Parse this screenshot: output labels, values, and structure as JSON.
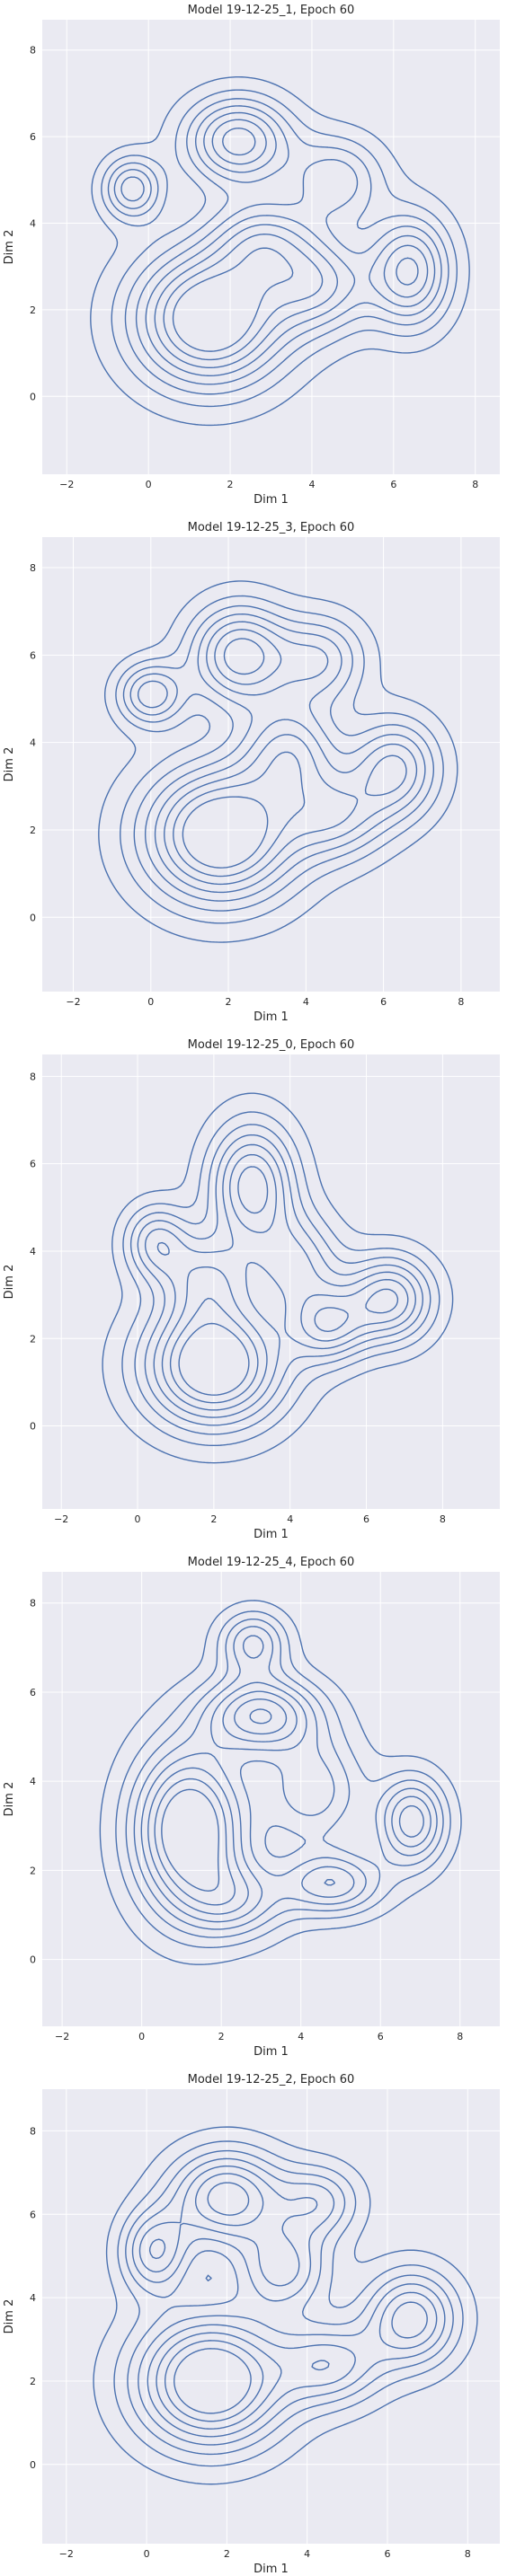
{
  "chart_data": [
    {
      "type": "kde-contour",
      "title": "Model 19-12-25_1, Epoch 60",
      "xlabel": "Dim 1",
      "ylabel": "Dim 2",
      "xlim": [
        -2.6,
        8.6
      ],
      "ylim": [
        -1.8,
        8.7
      ],
      "xticks": [
        -2,
        0,
        2,
        4,
        6,
        8
      ],
      "yticks": [
        0,
        2,
        4,
        6,
        8
      ],
      "grid": true,
      "color": "#4c72b0",
      "levels": [
        0.08,
        0.18,
        0.28,
        0.38,
        0.48,
        0.58,
        0.68,
        0.78
      ],
      "components": [
        {
          "x": 1.5,
          "y": 1.8,
          "sx": 1.3,
          "sy": 1.1,
          "w": 1.0
        },
        {
          "x": 2.2,
          "y": 5.9,
          "sx": 0.9,
          "sy": 0.7,
          "w": 0.75
        },
        {
          "x": -0.4,
          "y": 4.8,
          "sx": 0.5,
          "sy": 0.5,
          "w": 0.55
        },
        {
          "x": 6.4,
          "y": 2.9,
          "sx": 0.7,
          "sy": 0.9,
          "w": 0.7
        },
        {
          "x": 4.2,
          "y": 2.6,
          "sx": 0.9,
          "sy": 0.8,
          "w": 0.55
        },
        {
          "x": 4.6,
          "y": 5.0,
          "sx": 0.8,
          "sy": 0.7,
          "w": 0.45
        },
        {
          "x": 2.8,
          "y": 3.6,
          "sx": 0.9,
          "sy": 0.7,
          "w": 0.5
        }
      ]
    },
    {
      "type": "kde-contour",
      "title": "Model 19-12-25_3, Epoch 60",
      "xlabel": "Dim 1",
      "ylabel": "Dim 2",
      "xlim": [
        -2.8,
        9.0
      ],
      "ylim": [
        -1.7,
        8.7
      ],
      "xticks": [
        -2,
        0,
        2,
        4,
        6,
        8
      ],
      "yticks": [
        0,
        2,
        4,
        6,
        8
      ],
      "grid": true,
      "color": "#4c72b0",
      "levels": [
        0.08,
        0.18,
        0.28,
        0.38,
        0.48,
        0.58,
        0.68,
        0.78
      ],
      "components": [
        {
          "x": 1.8,
          "y": 1.9,
          "sx": 1.4,
          "sy": 1.1,
          "w": 1.0
        },
        {
          "x": 2.3,
          "y": 6.0,
          "sx": 0.9,
          "sy": 0.8,
          "w": 0.75
        },
        {
          "x": 0.0,
          "y": 5.1,
          "sx": 0.6,
          "sy": 0.5,
          "w": 0.55
        },
        {
          "x": 6.3,
          "y": 3.4,
          "sx": 0.8,
          "sy": 0.8,
          "w": 0.6
        },
        {
          "x": 3.6,
          "y": 3.8,
          "sx": 0.9,
          "sy": 0.8,
          "w": 0.55
        },
        {
          "x": 4.4,
          "y": 5.9,
          "sx": 0.8,
          "sy": 0.7,
          "w": 0.45
        },
        {
          "x": 4.8,
          "y": 2.3,
          "sx": 0.9,
          "sy": 0.7,
          "w": 0.45
        }
      ]
    },
    {
      "type": "kde-contour",
      "title": "Model 19-12-25_0, Epoch 60",
      "xlabel": "Dim 1",
      "ylabel": "Dim 2",
      "xlim": [
        -2.5,
        9.5
      ],
      "ylim": [
        -1.9,
        8.5
      ],
      "xticks": [
        -2,
        0,
        2,
        4,
        6,
        8
      ],
      "yticks": [
        0,
        2,
        4,
        6,
        8
      ],
      "grid": true,
      "color": "#4c72b0",
      "levels": [
        0.08,
        0.18,
        0.28,
        0.38,
        0.48,
        0.58,
        0.68,
        0.78
      ],
      "components": [
        {
          "x": 2.0,
          "y": 1.4,
          "sx": 1.3,
          "sy": 1.0,
          "w": 1.0
        },
        {
          "x": 3.0,
          "y": 5.5,
          "sx": 0.8,
          "sy": 1.0,
          "w": 0.75
        },
        {
          "x": 0.5,
          "y": 4.2,
          "sx": 0.6,
          "sy": 0.6,
          "w": 0.5
        },
        {
          "x": 6.6,
          "y": 2.9,
          "sx": 0.8,
          "sy": 0.7,
          "w": 0.7
        },
        {
          "x": 5.0,
          "y": 2.3,
          "sx": 0.7,
          "sy": 0.6,
          "w": 0.55
        },
        {
          "x": 4.2,
          "y": 3.7,
          "sx": 0.8,
          "sy": 0.8,
          "w": 0.45
        },
        {
          "x": 1.8,
          "y": 3.4,
          "sx": 0.8,
          "sy": 0.7,
          "w": 0.45
        }
      ]
    },
    {
      "type": "kde-contour",
      "title": "Model 19-12-25_4, Epoch 60",
      "xlabel": "Dim 1",
      "ylabel": "Dim 2",
      "xlim": [
        -2.5,
        9.0
      ],
      "ylim": [
        -1.5,
        8.7
      ],
      "xticks": [
        -2,
        0,
        2,
        4,
        6,
        8
      ],
      "yticks": [
        0,
        2,
        4,
        6,
        8
      ],
      "grid": true,
      "color": "#4c72b0",
      "levels": [
        0.08,
        0.18,
        0.28,
        0.38,
        0.48,
        0.58,
        0.68,
        0.78
      ],
      "components": [
        {
          "x": 1.2,
          "y": 2.9,
          "sx": 1.0,
          "sy": 1.3,
          "w": 1.0
        },
        {
          "x": 3.0,
          "y": 5.5,
          "sx": 1.0,
          "sy": 0.6,
          "w": 0.75
        },
        {
          "x": 2.8,
          "y": 7.1,
          "sx": 0.6,
          "sy": 0.5,
          "w": 0.5
        },
        {
          "x": 6.8,
          "y": 3.1,
          "sx": 0.6,
          "sy": 0.7,
          "w": 0.65
        },
        {
          "x": 4.8,
          "y": 1.7,
          "sx": 0.9,
          "sy": 0.5,
          "w": 0.55
        },
        {
          "x": 4.3,
          "y": 3.8,
          "sx": 0.9,
          "sy": 0.9,
          "w": 0.45
        },
        {
          "x": 2.4,
          "y": 1.3,
          "sx": 0.9,
          "sy": 0.6,
          "w": 0.4
        }
      ]
    },
    {
      "type": "kde-contour",
      "title": "Model 19-12-25_2, Epoch 60",
      "xlabel": "Dim 1",
      "ylabel": "Dim 2",
      "xlim": [
        -2.6,
        8.8
      ],
      "ylim": [
        -1.9,
        9.0
      ],
      "xticks": [
        -2,
        0,
        2,
        4,
        6,
        8
      ],
      "yticks": [
        0,
        2,
        4,
        6,
        8
      ],
      "grid": true,
      "color": "#4c72b0",
      "levels": [
        0.08,
        0.18,
        0.28,
        0.38,
        0.48,
        0.58,
        0.68,
        0.78
      ],
      "components": [
        {
          "x": 1.6,
          "y": 2.0,
          "sx": 1.3,
          "sy": 1.1,
          "w": 1.0
        },
        {
          "x": 2.0,
          "y": 6.4,
          "sx": 1.0,
          "sy": 0.8,
          "w": 0.75
        },
        {
          "x": 0.2,
          "y": 5.1,
          "sx": 0.6,
          "sy": 0.7,
          "w": 0.55
        },
        {
          "x": 6.6,
          "y": 3.5,
          "sx": 0.8,
          "sy": 0.8,
          "w": 0.65
        },
        {
          "x": 4.6,
          "y": 2.4,
          "sx": 0.9,
          "sy": 0.7,
          "w": 0.5
        },
        {
          "x": 3.4,
          "y": 4.7,
          "sx": 0.8,
          "sy": 0.7,
          "w": 0.5
        },
        {
          "x": 4.3,
          "y": 6.3,
          "sx": 0.7,
          "sy": 0.6,
          "w": 0.4
        }
      ]
    }
  ]
}
